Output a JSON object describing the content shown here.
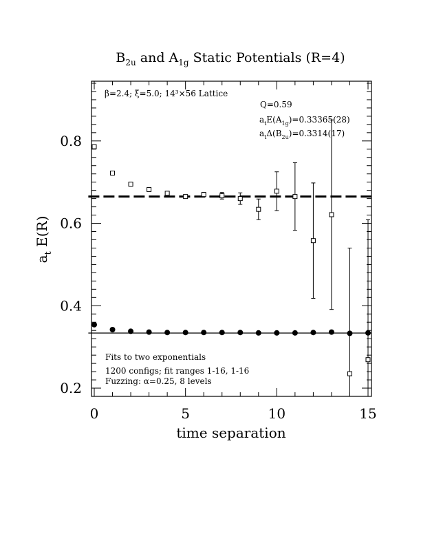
{
  "chart_data": {
    "type": "scatter",
    "title": {
      "pre1": "B",
      "sub1": "2u",
      "mid": " and A",
      "sub2": "1g",
      "post": " Static Potentials (R=4)"
    },
    "xlabel": "time separation",
    "ylabel": {
      "main": "a",
      "sub": "t",
      "rest": " E(R)"
    },
    "xlim": [
      0,
      15
    ],
    "ylim": [
      0.18,
      0.945
    ],
    "x_ticks": [
      0,
      5,
      10,
      15
    ],
    "y_ticks": [
      0.2,
      0.4,
      0.6,
      0.8
    ],
    "x_tick_labels": [
      "0",
      "5",
      "10",
      "15"
    ],
    "y_tick_labels": [
      "0.2",
      "0.4",
      "0.6",
      "0.8"
    ],
    "annotations": {
      "lattice": "β=2.4; ξ=5.0; 14³×56 Lattice",
      "q": "Q=0.59",
      "ea1g": {
        "pre": "a",
        "sub1": "t",
        "mid": "E(A",
        "sub2": "1g",
        "post": ")=0.33365(28)"
      },
      "db2u": {
        "pre": "a",
        "sub1": "t",
        "mid": "Δ(B",
        "sub2": "2u",
        "post": ")=0.3314(17)"
      },
      "fits": "Fits to two exponentials",
      "configs": "1200 configs; fit ranges 1-16, 1-16",
      "fuzzing": "Fuzzing: α=0.25, 8 levels"
    },
    "series": [
      {
        "marker": "filled-circle",
        "x": [
          0,
          1,
          2,
          3,
          4,
          5,
          6,
          7,
          8,
          9,
          10,
          11,
          12,
          13,
          14,
          15
        ],
        "y": [
          0.354,
          0.342,
          0.338,
          0.336,
          0.335,
          0.335,
          0.335,
          0.335,
          0.335,
          0.334,
          0.334,
          0.334,
          0.335,
          0.336,
          0.333,
          0.334
        ],
        "err": [
          0.002,
          0.001,
          0.001,
          0.001,
          0.001,
          0.001,
          0.001,
          0.001,
          0.001,
          0.001,
          0.001,
          0.001,
          0.002,
          0.002,
          0.003,
          0.004
        ]
      },
      {
        "marker": "open-square",
        "x": [
          0,
          1,
          2,
          3,
          4,
          5,
          6,
          7,
          8,
          9,
          10,
          11,
          12,
          13,
          14,
          15
        ],
        "y": [
          0.786,
          0.722,
          0.695,
          0.682,
          0.673,
          0.665,
          0.67,
          0.667,
          0.66,
          0.634,
          0.678,
          0.665,
          0.558,
          0.621,
          0.235,
          0.269
        ],
        "err": [
          0.002,
          0.002,
          0.002,
          0.003,
          0.004,
          0.004,
          0.005,
          0.008,
          0.014,
          0.025,
          0.047,
          0.082,
          0.14,
          0.23,
          0.305,
          0.34
        ]
      }
    ],
    "fit_lines": [
      {
        "style": "solid",
        "y": 0.33365,
        "x_range": [
          -0.4,
          15
        ]
      },
      {
        "style": "dashed",
        "y": 0.665,
        "x_range": [
          -0.4,
          15
        ]
      }
    ]
  }
}
